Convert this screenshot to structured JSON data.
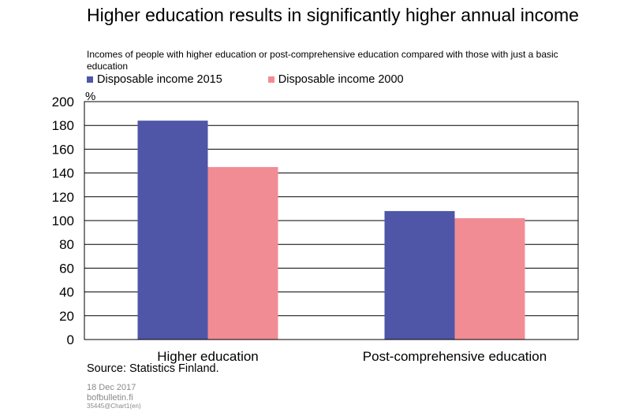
{
  "title": "Higher education results in significantly higher annual income",
  "subtitle": "Incomes of people with higher education or post-comprehensive education compared with those with just a basic education",
  "colors": {
    "series_2015": "#4f56a8",
    "series_2000": "#f28c94"
  },
  "chart_data": {
    "type": "bar",
    "categories": [
      "Higher education",
      "Post-comprehensive education"
    ],
    "series": [
      {
        "name": "Disposable income 2015",
        "values": [
          184,
          108
        ]
      },
      {
        "name": "Disposable income 2000",
        "values": [
          145,
          102
        ]
      }
    ],
    "ylabel": "%",
    "ylim": [
      0,
      200
    ],
    "yticks": [
      "0",
      "20",
      "40",
      "60",
      "80",
      "100",
      "120",
      "140",
      "160",
      "180",
      "200"
    ],
    "grid": true,
    "legend_position": "top-left"
  },
  "source": "Source: Statistics Finland.",
  "footer": {
    "date": "18 Dec 2017",
    "site": "bofbulletin.fi",
    "code": "35445@Chart1(en)"
  }
}
